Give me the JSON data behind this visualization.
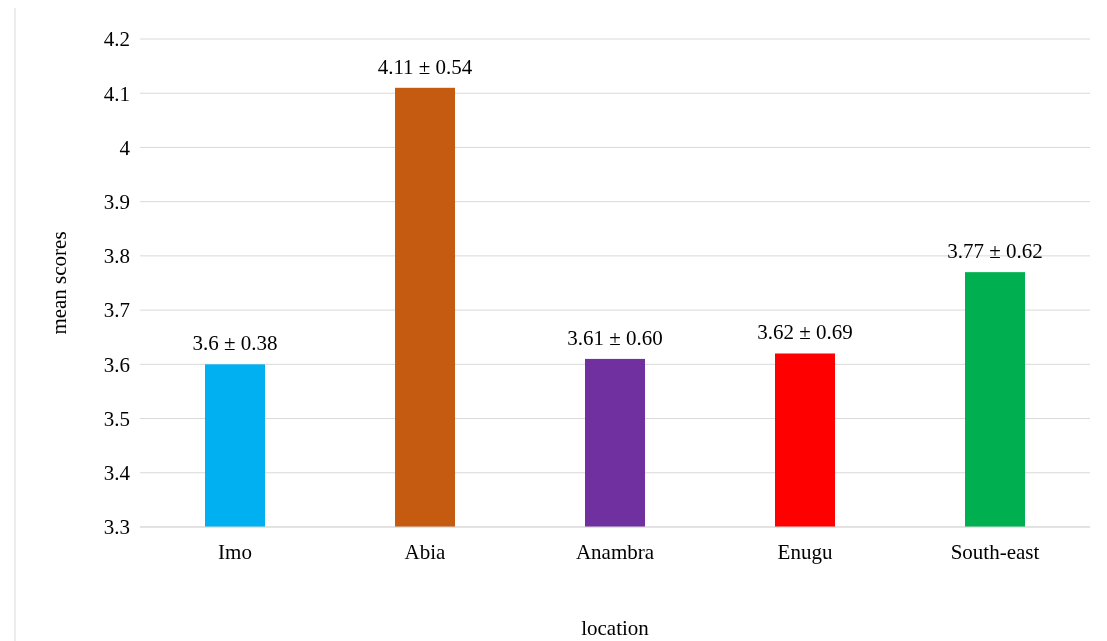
{
  "chart_data": {
    "type": "bar",
    "categories": [
      "Imo",
      "Abia",
      "Anambra",
      "Enugu",
      "South-east"
    ],
    "values": [
      3.6,
      4.11,
      3.61,
      3.62,
      3.77
    ],
    "colors": [
      "#00b0f0",
      "#c55a11",
      "#7030a0",
      "#ff0000",
      "#00b050"
    ],
    "value_labels": [
      "3.6 ± 0.38",
      "4.11 ± 0.54",
      "3.61 ± 0.60",
      "3.62 ± 0.69",
      "3.77 ± 0.62"
    ],
    "xlabel": "location",
    "ylabel": "mean scores",
    "ylim": [
      3.3,
      4.2
    ],
    "yticks": [
      3.3,
      3.4,
      3.5,
      3.6,
      3.7,
      3.8,
      3.9,
      4,
      4.1,
      4.2
    ],
    "grid": "y"
  }
}
